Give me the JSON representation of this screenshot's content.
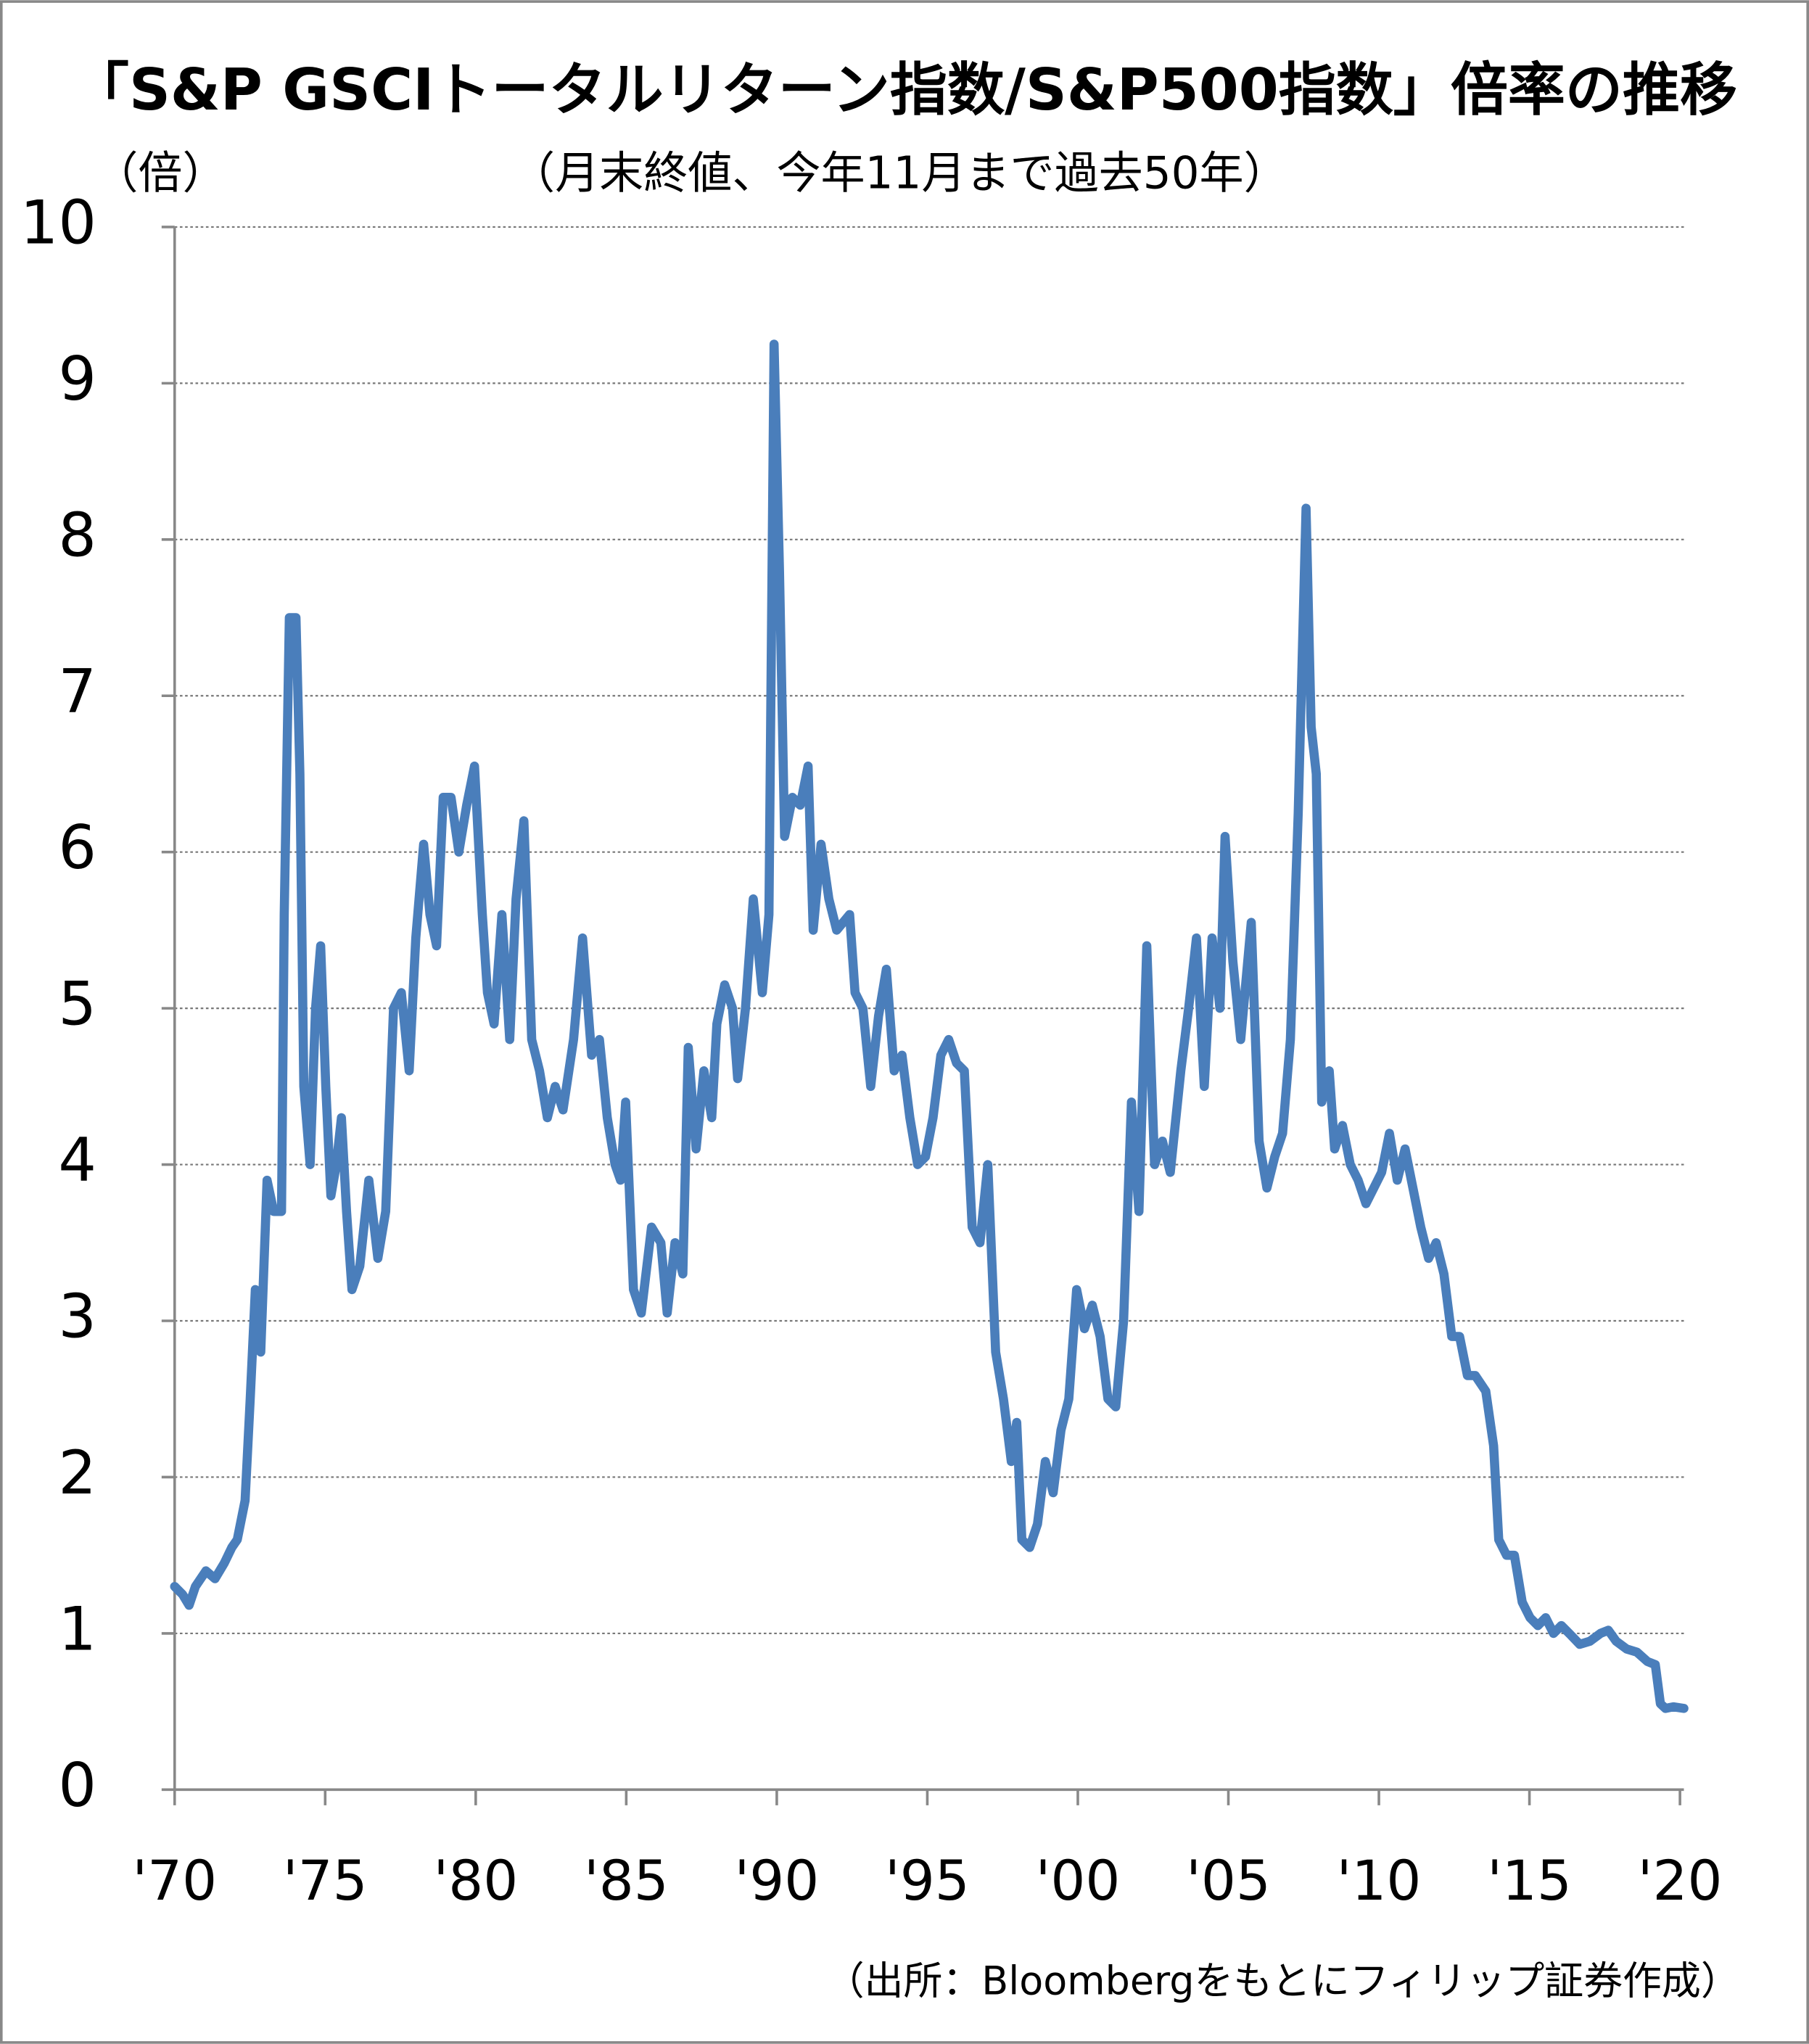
{
  "chart_data": {
    "type": "line",
    "title": "「S&P GSCIトータルリターン指数/S&P500指数」倍率の推移",
    "subtitle": "（月末終値、今年11月まで過去50年）",
    "y_label": "（倍）",
    "source": "（出所：Bloombergをもとにフィリップ証券作成）",
    "xlim": [
      1970,
      2020.13
    ],
    "xticks": [
      {
        "value": 1970,
        "label": "'70"
      },
      {
        "value": 1975,
        "label": "'75"
      },
      {
        "value": 1980,
        "label": "'80"
      },
      {
        "value": 1985,
        "label": "'85"
      },
      {
        "value": 1990,
        "label": "'90"
      },
      {
        "value": 1995,
        "label": "'95"
      },
      {
        "value": 2000,
        "label": "'00"
      },
      {
        "value": 2005,
        "label": "'05"
      },
      {
        "value": 2010,
        "label": "'10"
      },
      {
        "value": 2015,
        "label": "'15"
      },
      {
        "value": 2020,
        "label": "'20"
      }
    ],
    "ylim": [
      0,
      10
    ],
    "yticks": [
      0,
      1,
      2,
      3,
      4,
      5,
      6,
      7,
      8,
      9,
      10
    ],
    "grid": true,
    "x": [
      1970.0,
      1970.26,
      1970.48,
      1970.69,
      1971.04,
      1971.34,
      1971.65,
      1971.9,
      1972.08,
      1972.34,
      1972.51,
      1972.68,
      1972.86,
      1973.07,
      1973.29,
      1973.55,
      1973.64,
      1973.81,
      1974.03,
      1974.16,
      1974.29,
      1974.5,
      1974.68,
      1974.85,
      1975.02,
      1975.19,
      1975.37,
      1975.54,
      1975.71,
      1975.89,
      1976.15,
      1976.45,
      1976.75,
      1977.01,
      1977.27,
      1977.53,
      1977.79,
      1978.01,
      1978.27,
      1978.48,
      1978.7,
      1978.92,
      1979.18,
      1979.44,
      1979.7,
      1979.96,
      1980.22,
      1980.39,
      1980.61,
      1980.87,
      1981.13,
      1981.34,
      1981.6,
      1981.86,
      1982.12,
      1982.38,
      1982.64,
      1982.9,
      1983.25,
      1983.55,
      1983.85,
      1984.11,
      1984.37,
      1984.63,
      1984.81,
      1984.98,
      1985.24,
      1985.5,
      1985.84,
      1986.15,
      1986.36,
      1986.62,
      1986.88,
      1987.06,
      1987.32,
      1987.58,
      1987.84,
      1988.01,
      1988.27,
      1988.53,
      1988.7,
      1988.96,
      1989.22,
      1989.52,
      1989.74,
      1989.91,
      1990.09,
      1990.26,
      1990.52,
      1990.78,
      1991.04,
      1991.21,
      1991.47,
      1991.73,
      1991.99,
      1992.42,
      1992.6,
      1992.86,
      1993.12,
      1993.38,
      1993.64,
      1993.9,
      1994.16,
      1994.42,
      1994.68,
      1994.94,
      1995.19,
      1995.45,
      1995.71,
      1995.97,
      1996.23,
      1996.49,
      1996.75,
      1997.01,
      1997.27,
      1997.53,
      1997.79,
      1997.97,
      1998.14,
      1998.4,
      1998.66,
      1998.92,
      1999.18,
      1999.44,
      1999.7,
      1999.96,
      2000.22,
      2000.48,
      2000.74,
      2001.0,
      2001.26,
      2001.52,
      2001.78,
      2002.03,
      2002.29,
      2002.55,
      2002.81,
      2003.07,
      2003.42,
      2003.68,
      2003.94,
      2004.2,
      2004.46,
      2004.72,
      2004.89,
      2005.15,
      2005.41,
      2005.76,
      2006.02,
      2006.28,
      2006.54,
      2006.8,
      2007.06,
      2007.32,
      2007.58,
      2007.75,
      2007.92,
      2008.1,
      2008.35,
      2008.53,
      2008.79,
      2009.05,
      2009.31,
      2009.57,
      2009.83,
      2010.09,
      2010.35,
      2010.61,
      2010.87,
      2011.13,
      2011.39,
      2011.65,
      2011.9,
      2012.16,
      2012.42,
      2012.68,
      2012.94,
      2013.2,
      2013.55,
      2013.81,
      2013.98,
      2014.24,
      2014.5,
      2014.76,
      2015.02,
      2015.28,
      2015.54,
      2015.8,
      2016.06,
      2016.32,
      2016.67,
      2017.01,
      2017.36,
      2017.62,
      2017.88,
      2018.23,
      2018.57,
      2018.92,
      2019.18,
      2019.35,
      2019.52,
      2019.78,
      2020.13
    ],
    "series": [
      {
        "name": "倍率",
        "color": "#4a7ebb",
        "values": [
          1.3,
          1.25,
          1.18,
          1.3,
          1.4,
          1.35,
          1.45,
          1.55,
          1.6,
          1.85,
          2.5,
          3.2,
          2.8,
          3.9,
          3.7,
          3.7,
          5.6,
          7.5,
          7.5,
          6.5,
          4.5,
          4.0,
          5.0,
          5.4,
          4.5,
          3.8,
          4.0,
          4.3,
          3.7,
          3.2,
          3.35,
          3.9,
          3.4,
          3.7,
          5.0,
          5.1,
          4.6,
          5.45,
          6.05,
          5.6,
          5.4,
          6.35,
          6.35,
          6.0,
          6.3,
          6.55,
          5.6,
          5.1,
          4.9,
          5.6,
          4.8,
          5.7,
          6.2,
          4.8,
          4.6,
          4.3,
          4.5,
          4.35,
          4.8,
          5.45,
          4.7,
          4.8,
          4.3,
          4.0,
          3.9,
          4.4,
          3.2,
          3.05,
          3.6,
          3.5,
          3.05,
          3.5,
          3.3,
          4.75,
          4.1,
          4.6,
          4.3,
          4.9,
          5.15,
          5.0,
          4.55,
          5.0,
          5.7,
          5.1,
          5.6,
          9.25,
          7.8,
          6.1,
          6.35,
          6.3,
          6.55,
          5.5,
          6.05,
          5.7,
          5.5,
          5.6,
          5.1,
          5.0,
          4.5,
          4.95,
          5.25,
          4.6,
          4.7,
          4.3,
          4.0,
          4.05,
          4.3,
          4.7,
          4.8,
          4.65,
          4.6,
          3.6,
          3.5,
          4.0,
          2.8,
          2.5,
          2.1,
          2.35,
          1.6,
          1.55,
          1.7,
          2.1,
          1.9,
          2.3,
          2.5,
          3.2,
          2.95,
          3.1,
          2.9,
          2.5,
          2.45,
          3.0,
          4.4,
          3.7,
          5.4,
          4.0,
          4.15,
          3.95,
          4.6,
          5.0,
          5.45,
          4.5,
          5.45,
          5.0,
          6.1,
          5.3,
          4.8,
          5.55,
          4.15,
          3.85,
          4.05,
          4.2,
          4.8,
          6.25,
          8.2,
          6.8,
          6.5,
          4.4,
          4.6,
          4.1,
          4.25,
          4.0,
          3.9,
          3.75,
          3.85,
          3.95,
          4.2,
          3.9,
          4.1,
          3.85,
          3.6,
          3.4,
          3.5,
          3.3,
          2.9,
          2.9,
          2.65,
          2.65,
          2.55,
          2.2,
          1.6,
          1.5,
          1.5,
          1.2,
          1.1,
          1.05,
          1.1,
          1.0,
          1.05,
          1.0,
          0.93,
          0.95,
          1.0,
          1.02,
          0.95,
          0.9,
          0.88,
          0.82,
          0.8,
          0.55,
          0.52,
          0.53,
          0.52
        ]
      }
    ]
  }
}
